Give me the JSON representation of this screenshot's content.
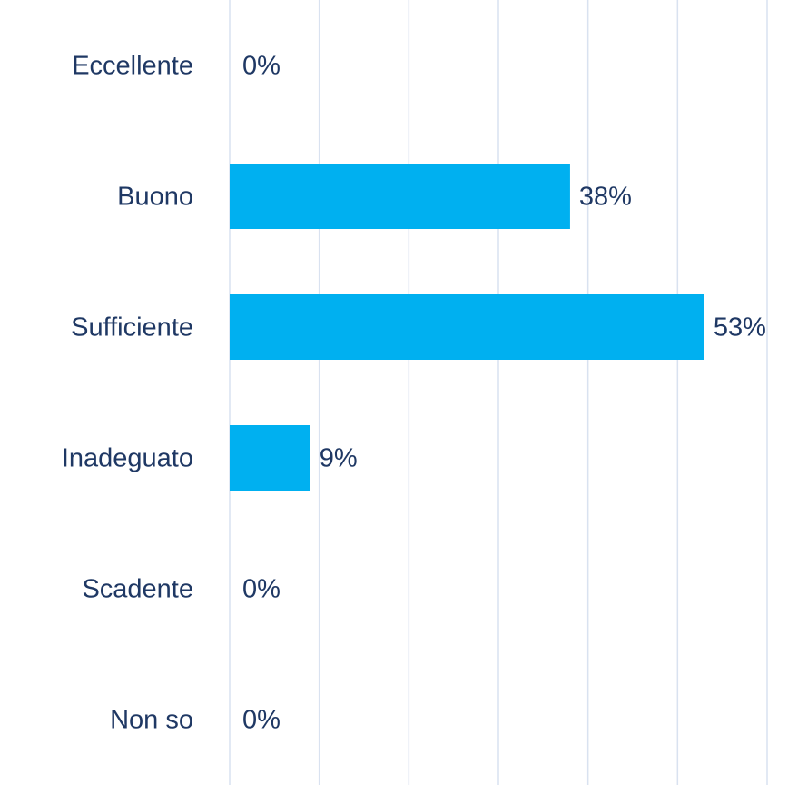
{
  "chart_data": {
    "type": "hbar",
    "categories": [
      "Eccellente",
      "Buono",
      "Sufficiente",
      "Inadeguato",
      "Scadente",
      "Non so"
    ],
    "values": [
      0,
      38,
      53,
      9,
      0,
      0
    ],
    "value_labels": [
      "0%",
      "38%",
      "53%",
      "9%",
      "0%",
      "0%"
    ],
    "color": "#00b0f0",
    "xlim": [
      0,
      60
    ],
    "xticks": [
      0,
      10,
      20,
      30,
      40,
      50,
      60
    ],
    "grid": true
  }
}
